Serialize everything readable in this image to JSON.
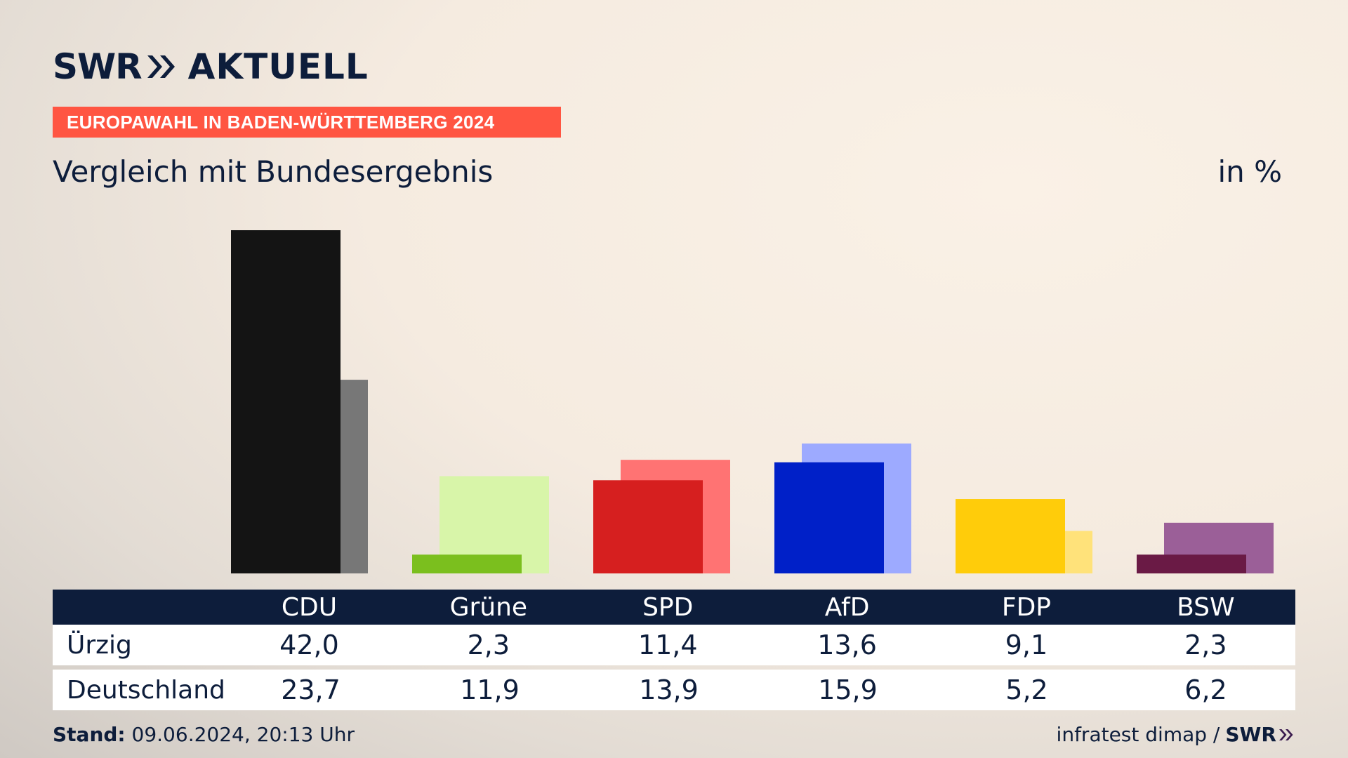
{
  "brand": {
    "swr": "SWR",
    "aktuell": "AKTUELL"
  },
  "banner": "EUROPAWAHL IN BADEN-WÜRTTEMBERG 2024",
  "subtitle": "Vergleich mit Bundesergebnis",
  "unit": "in %",
  "colors": {
    "navy": "#0d1d3b",
    "banner": "#ff5542"
  },
  "chart_data": {
    "type": "bar",
    "categories": [
      "CDU",
      "Grüne",
      "SPD",
      "AfD",
      "FDP",
      "BSW"
    ],
    "series": [
      {
        "name": "Ürzig",
        "values": [
          42.0,
          2.3,
          11.4,
          13.6,
          9.1,
          2.3
        ],
        "colors": [
          "#141414",
          "#7bbf1e",
          "#d61f1f",
          "#0020c8",
          "#ffcc0a",
          "#6a1a45"
        ]
      },
      {
        "name": "Deutschland",
        "values": [
          23.7,
          11.9,
          13.9,
          15.9,
          5.2,
          6.2
        ],
        "colors": [
          "#777777",
          "#d8f5a9",
          "#ff7373",
          "#9daaff",
          "#ffe27a",
          "#9b5f98"
        ]
      }
    ],
    "value_labels": {
      "Ürzig": [
        "42,0",
        "2,3",
        "11,4",
        "13,6",
        "9,1",
        "2,3"
      ],
      "Deutschland": [
        "23,7",
        "11,9",
        "13,9",
        "15,9",
        "5,2",
        "6,2"
      ]
    },
    "ylim": [
      0,
      42
    ],
    "grid": false
  },
  "table": {
    "header": [
      "CDU",
      "Grüne",
      "SPD",
      "AfD",
      "FDP",
      "BSW"
    ],
    "rows": [
      {
        "label": "Ürzig",
        "values": [
          "42,0",
          "2,3",
          "11,4",
          "13,6",
          "9,1",
          "2,3"
        ]
      },
      {
        "label": "Deutschland",
        "values": [
          "23,7",
          "11,9",
          "13,9",
          "15,9",
          "5,2",
          "6,2"
        ]
      }
    ]
  },
  "footer": {
    "stand_label": "Stand:",
    "stand_value": "09.06.2024, 20:13 Uhr",
    "source": "infratest dimap /",
    "source_brand": "SWR"
  }
}
